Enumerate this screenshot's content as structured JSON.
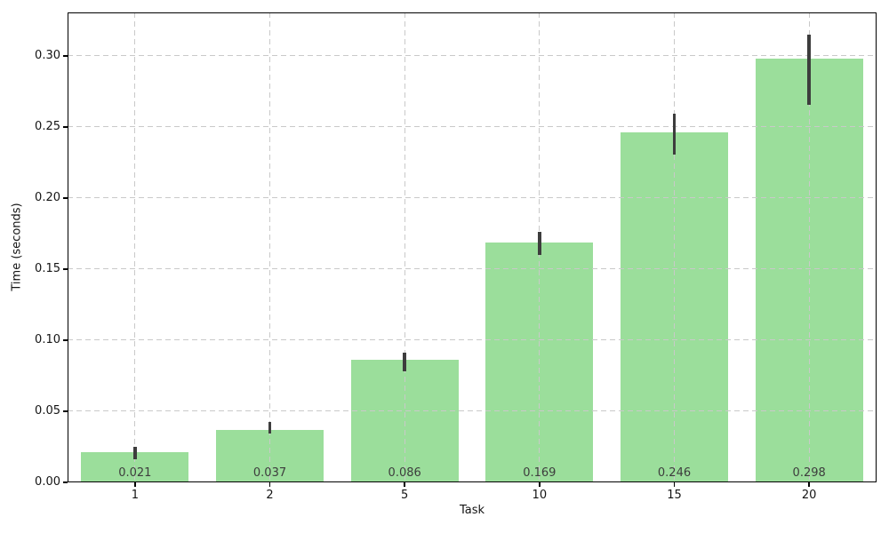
{
  "chart_data": {
    "type": "bar",
    "title": "",
    "xlabel": "Task",
    "ylabel": "Time (seconds)",
    "categories": [
      "1",
      "2",
      "5",
      "10",
      "15",
      "20"
    ],
    "values": [
      0.021,
      0.037,
      0.086,
      0.169,
      0.246,
      0.298
    ],
    "bar_labels": [
      "0.021",
      "0.037",
      "0.086",
      "0.169",
      "0.246",
      "0.298"
    ],
    "error_low": [
      0.0163,
      0.0344,
      0.0781,
      0.16,
      0.2306,
      0.2656
    ],
    "error_high": [
      0.025,
      0.0425,
      0.0913,
      0.1763,
      0.2594,
      0.315
    ],
    "yticks": [
      0.0,
      0.05,
      0.1,
      0.15,
      0.2,
      0.25,
      0.3
    ],
    "ytick_labels": [
      "0.00",
      "0.05",
      "0.10",
      "0.15",
      "0.20",
      "0.25",
      "0.30"
    ],
    "ylim": [
      0,
      0.3306
    ],
    "grid": true,
    "grid_style": "dashed",
    "legend": "none",
    "colors": {
      "bar": "#9BDE9B",
      "error_bar": "#3D3D3D",
      "grid": "#C9C9C9",
      "bar_label_text": "#3D3D3D",
      "axis": "#000000"
    }
  }
}
